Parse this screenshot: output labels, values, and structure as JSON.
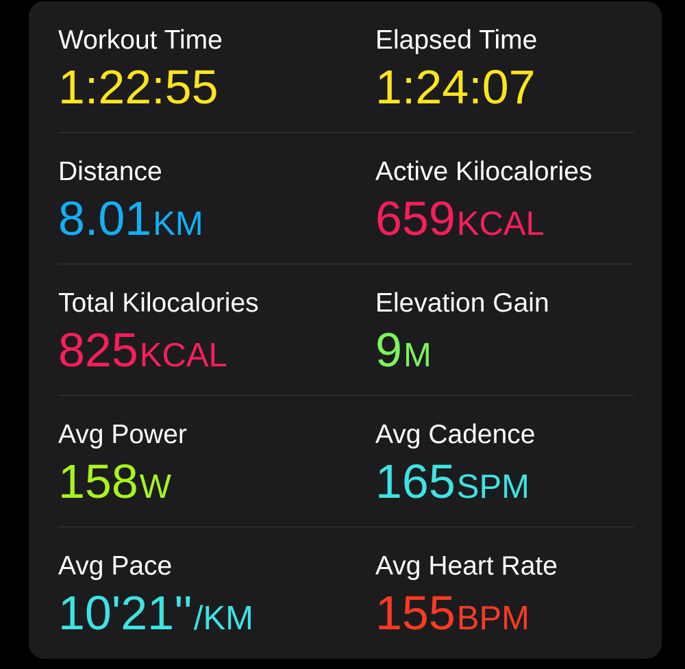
{
  "metrics": [
    {
      "label": "Workout Time",
      "value": "1:22:55",
      "unit": "",
      "color": "#ffe41e"
    },
    {
      "label": "Elapsed Time",
      "value": "1:24:07",
      "unit": "",
      "color": "#ffe41e"
    },
    {
      "label": "Distance",
      "value": "8.01",
      "unit": "KM",
      "color": "#12b0f5"
    },
    {
      "label": "Active Kilocalories",
      "value": "659",
      "unit": "KCAL",
      "color": "#fa1e5a"
    },
    {
      "label": "Total Kilocalories",
      "value": "825",
      "unit": "KCAL",
      "color": "#fa1e5a"
    },
    {
      "label": "Elevation Gain",
      "value": "9",
      "unit": "M",
      "color": "#7cf45c"
    },
    {
      "label": "Avg Power",
      "value": "158",
      "unit": "W",
      "color": "#a8f41e"
    },
    {
      "label": "Avg Cadence",
      "value": "165",
      "unit": "SPM",
      "color": "#3ee3e3"
    },
    {
      "label": "Avg Pace",
      "value": "10'21''",
      "unit": "/KM",
      "color": "#3ee3e3"
    },
    {
      "label": "Avg Heart Rate",
      "value": "155",
      "unit": "BPM",
      "color": "#ff3b22"
    }
  ]
}
